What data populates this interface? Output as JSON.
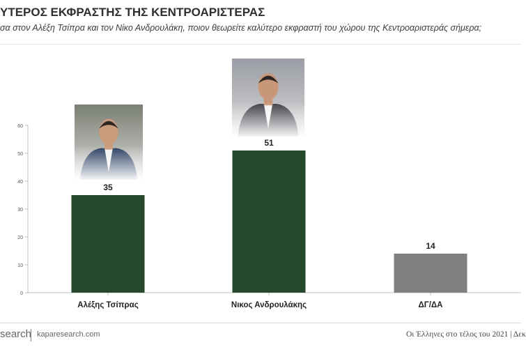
{
  "header": {
    "title": "ΥΤΕΡΟΣ ΕΚΦΡΑΣΤΗΣ ΤΗΣ ΚΕΝΤΡΟΑΡΙΣΤΕΡΑΣ",
    "subtitle": "σα στον Αλέξη Τσίπρα και τον Νίκο Ανδρουλάκη, ποιον θεωρείτε καλύτερο εκφραστή του χώρου της Κεντροαριστεράς σήμερα;"
  },
  "chart_data": {
    "type": "bar",
    "categories": [
      "Αλέξης Τσίπρας",
      "Νικος Ανδρουλάκης",
      "ΔΓ/ΔΑ"
    ],
    "values": [
      35,
      51,
      14
    ],
    "data_labels": [
      "35",
      "51",
      "14"
    ],
    "bar_colors": [
      "#27492b",
      "#27492b",
      "#7f7f7f"
    ],
    "ylim": [
      0,
      60
    ],
    "yticks": [
      0,
      10,
      20,
      30,
      40,
      50,
      60
    ],
    "grid": false,
    "legend": "none",
    "title": "",
    "xlabel": "",
    "ylabel": ""
  },
  "photos": [
    {
      "icon": "person-photo-tsipras",
      "suit": "#243a5e",
      "skin": "#c99a7c",
      "bg": "#7a7f73"
    },
    {
      "icon": "person-photo-androulakis",
      "suit": "#3a3c44",
      "skin": "#c8977a",
      "bg": "#9a9da4"
    }
  ],
  "footer": {
    "brand": "search",
    "url": "kaparesearch.com",
    "right_text": "Οι Έλληνες στο τέλος του 2021 | Δεκ"
  }
}
